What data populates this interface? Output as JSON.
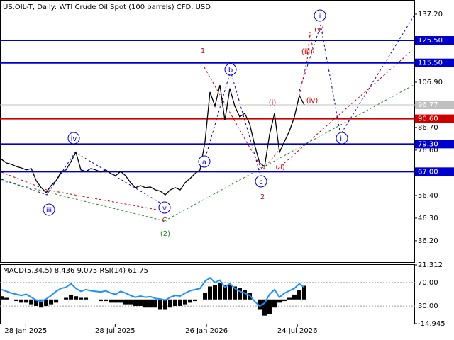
{
  "chart_data": {
    "type": "line",
    "title": "US.OIL-T, Daily:  WTI Crude Oil Spot (100 barrels) CFD, USD",
    "series": [
      {
        "name": "US.OIL-T",
        "color": "#000000",
        "values": [
          72.5,
          70.9,
          70.3,
          69.3,
          68.7,
          67.8,
          68.4,
          63.0,
          59.9,
          57.7,
          60.8,
          63.0,
          66.8,
          67.8,
          71.5,
          75.6,
          67.8,
          67.1,
          68.4,
          67.8,
          66.8,
          67.8,
          66.2,
          65.2,
          67.1,
          65.2,
          62.1,
          59.9,
          60.8,
          59.9,
          60.2,
          58.9,
          58.3,
          56.7,
          58.9,
          59.9,
          58.9,
          62.1,
          64.0,
          66.2,
          67.8,
          80.4,
          102.5,
          96.2,
          105.6,
          89.9,
          104.1,
          96.2,
          91.4,
          93.0,
          88.3,
          78.8,
          70.9,
          69.3,
          83.5,
          93.0,
          75.6,
          80.4,
          85.1,
          91.4,
          100.9,
          96.77
        ]
      }
    ],
    "ylim": [
      26.7,
      143.5
    ],
    "yticks": [
      {
        "value": 137.2,
        "label": "137.20"
      },
      {
        "value": 106.9,
        "label": "106.90"
      },
      {
        "value": 86.7,
        "label": "86.70"
      },
      {
        "value": 76.6,
        "label": "76.60"
      },
      {
        "value": 56.4,
        "label": "56.40"
      },
      {
        "value": 46.3,
        "label": "46.30"
      },
      {
        "value": 36.2,
        "label": "36.20"
      }
    ],
    "xlim": [
      -0.3,
      83.3
    ],
    "xticks": [
      {
        "value": 4.9,
        "label": "28 Jan 2025"
      },
      {
        "value": 22.9,
        "label": "28 Jul 2025"
      },
      {
        "value": 41.3,
        "label": "26 Jan 2026"
      },
      {
        "value": 59.6,
        "label": "24 Jul 2026"
      }
    ],
    "current_price": 96.77,
    "levels": [
      {
        "value": 125.5,
        "label": "125.50",
        "color": "#0000cc"
      },
      {
        "value": 115.5,
        "label": "115.50",
        "color": "#0000cc"
      },
      {
        "value": 90.6,
        "label": "90.60",
        "color": "#cc0000"
      },
      {
        "value": 79.3,
        "label": "79.30",
        "color": "#0000cc"
      },
      {
        "value": 67.0,
        "label": "67.00",
        "color": "#0000cc"
      }
    ],
    "annotations": [
      {
        "text": "i",
        "color": "#0000cc"
      },
      {
        "text": "(v)",
        "color": "#cc0000"
      },
      {
        "text": "(iii)",
        "color": "#cc0000"
      },
      {
        "text": "1",
        "color": "#992222"
      },
      {
        "text": "b",
        "color": "#0000cc"
      },
      {
        "text": "(i)",
        "color": "#cc0000"
      },
      {
        "text": "(iv)",
        "color": "#cc0000"
      },
      {
        "text": "iv",
        "color": "#0000cc"
      },
      {
        "text": "ii",
        "color": "#0000cc"
      },
      {
        "text": "a",
        "color": "#0000cc"
      },
      {
        "text": "(ii)",
        "color": "#cc0000"
      },
      {
        "text": "c",
        "color": "#0000cc"
      },
      {
        "text": "2",
        "color": "#992222"
      },
      {
        "text": "iii",
        "color": "#0000cc"
      },
      {
        "text": "v",
        "color": "#0000cc"
      },
      {
        "text": "C",
        "color": "#992222"
      },
      {
        "text": "(2)",
        "color": "#228822"
      }
    ],
    "indicator": {
      "title": "MACD(5,34,5) 8.436 9.075 RSI(14) 61.75",
      "macd_ylim": [
        -14.945,
        21.312
      ],
      "macd_ticks": [
        {
          "value": 21.312,
          "label": "21.312"
        },
        {
          "value": -14.945,
          "label": "-14.945"
        }
      ],
      "rsi_ylim": [
        0,
        100
      ],
      "rsi_ticks": [
        {
          "value": 70,
          "label": "70.00"
        },
        {
          "value": 30,
          "label": "30.00"
        }
      ],
      "macd": {
        "color": "#000000",
        "values": [
          2,
          1,
          0,
          -1,
          -2,
          -2,
          -3,
          -4,
          -5,
          -4,
          -3,
          -2,
          0,
          1,
          3,
          2,
          1,
          1,
          0,
          0,
          -1,
          -1,
          -2,
          -2,
          -2,
          -3,
          -3,
          -4,
          -4,
          -5,
          -5,
          -5,
          -6,
          -6,
          -5,
          -4,
          -4,
          -3,
          -2,
          -1,
          0,
          4,
          8,
          9,
          10,
          9,
          9,
          8,
          7,
          6,
          4,
          0,
          -6,
          -10,
          -9,
          -5,
          -2,
          -1,
          1,
          3,
          6,
          8.436
        ]
      },
      "rsi": {
        "color": "#1e90ff",
        "values": [
          58,
          55,
          52,
          50,
          48,
          50,
          45,
          40,
          38,
          42,
          48,
          55,
          60,
          62,
          68,
          60,
          55,
          58,
          56,
          55,
          54,
          56,
          52,
          50,
          55,
          52,
          48,
          45,
          47,
          45,
          46,
          43,
          42,
          40,
          45,
          48,
          47,
          52,
          56,
          58,
          60,
          72,
          78,
          70,
          74,
          62,
          68,
          60,
          55,
          52,
          48,
          38,
          30,
          35,
          50,
          58,
          45,
          52,
          56,
          60,
          68,
          61.75
        ]
      }
    }
  }
}
